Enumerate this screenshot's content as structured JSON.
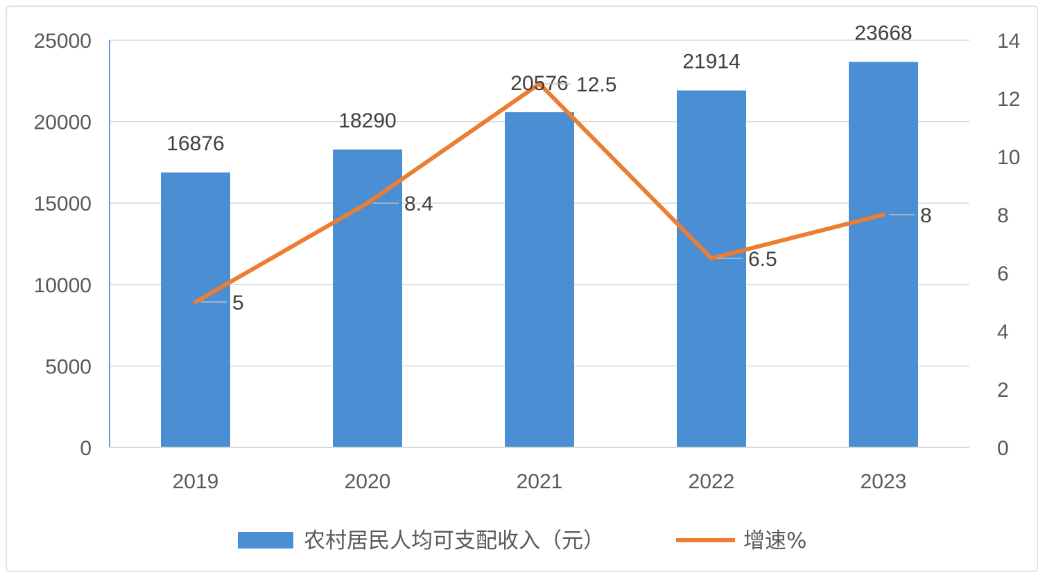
{
  "chart_data": {
    "type": "bar",
    "categories": [
      "2019",
      "2020",
      "2021",
      "2022",
      "2023"
    ],
    "series": [
      {
        "name": "农村居民人均可支配收入（元）",
        "type": "bar",
        "axis": "left",
        "values": [
          16876,
          18290,
          20576,
          21914,
          23668
        ],
        "color": "#4a8fd4"
      },
      {
        "name": "增速%",
        "type": "line",
        "axis": "right",
        "values": [
          5,
          8.4,
          12.5,
          6.5,
          8
        ],
        "color": "#ed7d31"
      }
    ],
    "y_left": {
      "min": 0,
      "max": 25000,
      "ticks": [
        "0",
        "5000",
        "10000",
        "15000",
        "20000",
        "25000"
      ]
    },
    "y_right": {
      "min": 0,
      "max": 14,
      "ticks": [
        "0",
        "2",
        "4",
        "6",
        "8",
        "10",
        "12",
        "14"
      ]
    },
    "bar_labels": [
      "16876",
      "18290",
      "20576",
      "21914",
      "23668"
    ],
    "line_labels": [
      "5",
      "8.4",
      "12.5",
      "6.5",
      "8"
    ],
    "grid": true,
    "legend_position": "bottom",
    "title": "",
    "xlabel": "",
    "ylabel": ""
  }
}
